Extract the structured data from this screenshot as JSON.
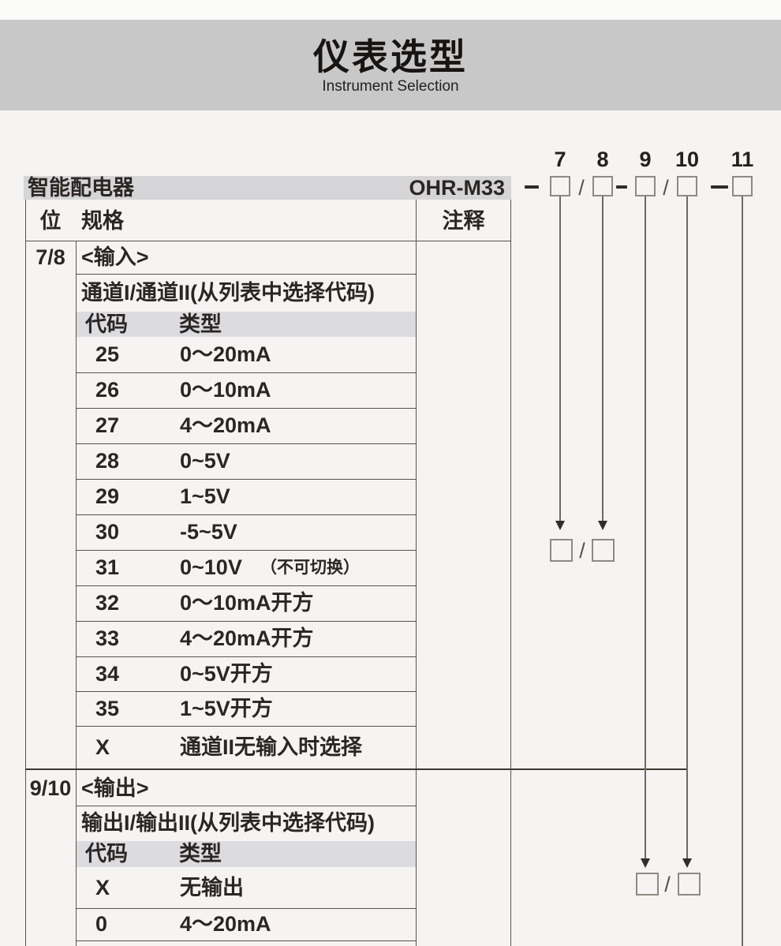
{
  "colors": {
    "page_bg": "#f5f4f2",
    "header_band": "#c9c8c9",
    "product_bar_bg": "#d5d4d6",
    "table_header_bg": "#dcdbdf",
    "text": "#2b2623",
    "line_dark": "#3e3833",
    "line_gray": "#6f6963"
  },
  "header": {
    "title": "仪表选型",
    "subtitle": "Instrument Selection"
  },
  "product": {
    "name": "智能配电器",
    "model": "OHR-M33"
  },
  "code_diagram": {
    "digit_labels": [
      "7",
      "8",
      "9",
      "10",
      "11"
    ],
    "separators": [
      "-",
      "/",
      "-",
      "/",
      "-"
    ],
    "pair_slash": "/"
  },
  "table": {
    "columns": {
      "position": "位",
      "spec": "规格",
      "note": "注释"
    },
    "sections": [
      {
        "position": "7/8",
        "heading": "<输入>",
        "subheading": "通道I/通道II(从列表中选择代码)",
        "code_header": "代码",
        "type_header": "类型",
        "rows": [
          {
            "code": "25",
            "type": "0～20mA"
          },
          {
            "code": "26",
            "type": "0～10mA"
          },
          {
            "code": "27",
            "type": "4～20mA"
          },
          {
            "code": "28",
            "type": "0~5V"
          },
          {
            "code": "29",
            "type": "1~5V"
          },
          {
            "code": "30",
            "type": "-5~5V"
          },
          {
            "code": "31",
            "type": "0~10V",
            "note": "（不可切换）"
          },
          {
            "code": "32",
            "type": "0～10mA开方"
          },
          {
            "code": "33",
            "type": "4～20mA开方"
          },
          {
            "code": "34",
            "type": "0~5V开方"
          },
          {
            "code": "35",
            "type": "1~5V开方"
          },
          {
            "code": "X",
            "type": "通道II无输入时选择"
          }
        ]
      },
      {
        "position": "9/10",
        "heading": "<输出>",
        "subheading": "输出I/输出II(从列表中选择代码)",
        "code_header": "代码",
        "type_header": "类型",
        "rows": [
          {
            "code": "X",
            "type": "无输出"
          },
          {
            "code": "0",
            "type": "4～20mA"
          }
        ]
      }
    ]
  }
}
